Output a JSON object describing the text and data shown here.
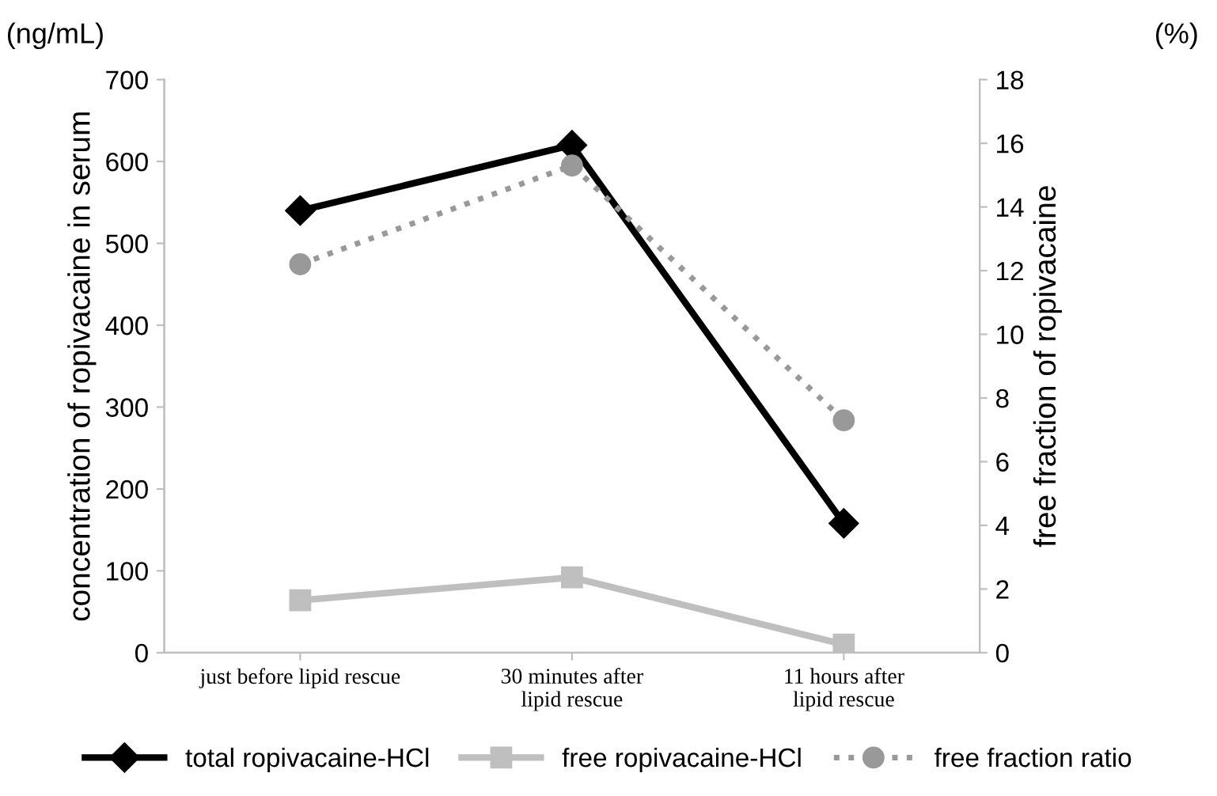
{
  "chart_data": {
    "type": "line",
    "categories": [
      "just before lipid rescue",
      "30 minutes after\nlipid rescue",
      "11 hours after\nlipid rescue"
    ],
    "series": [
      {
        "name": "total ropivacaine-HCl",
        "color": "#000000",
        "values": [
          540,
          620,
          158
        ],
        "marker": "diamond",
        "line_style": "solid"
      },
      {
        "name": "free ropivacaine-HCl",
        "color": "#bfbfbf",
        "values": [
          64,
          92,
          10
        ],
        "marker": "square",
        "line_style": "solid"
      },
      {
        "name": "free fraction ratio",
        "color": "#999999",
        "values": [
          12.2,
          15.3,
          7.3
        ],
        "marker": "circle",
        "line_style": "dotted",
        "axis": "y2"
      }
    ],
    "ylabel": "concentration of ropivacaine in serum",
    "y2label": "free fraction of ropivacaine",
    "annotations": [
      "(ng/mL)",
      "(%)"
    ],
    "ylim": [
      0,
      700
    ],
    "yticks": [
      0,
      100,
      200,
      300,
      400,
      500,
      600,
      700
    ],
    "y2lim": [
      0,
      18
    ],
    "y2ticks": [
      0,
      2,
      4,
      6,
      8,
      10,
      12,
      14,
      16,
      18
    ],
    "grid": false,
    "legend": "bottom"
  }
}
